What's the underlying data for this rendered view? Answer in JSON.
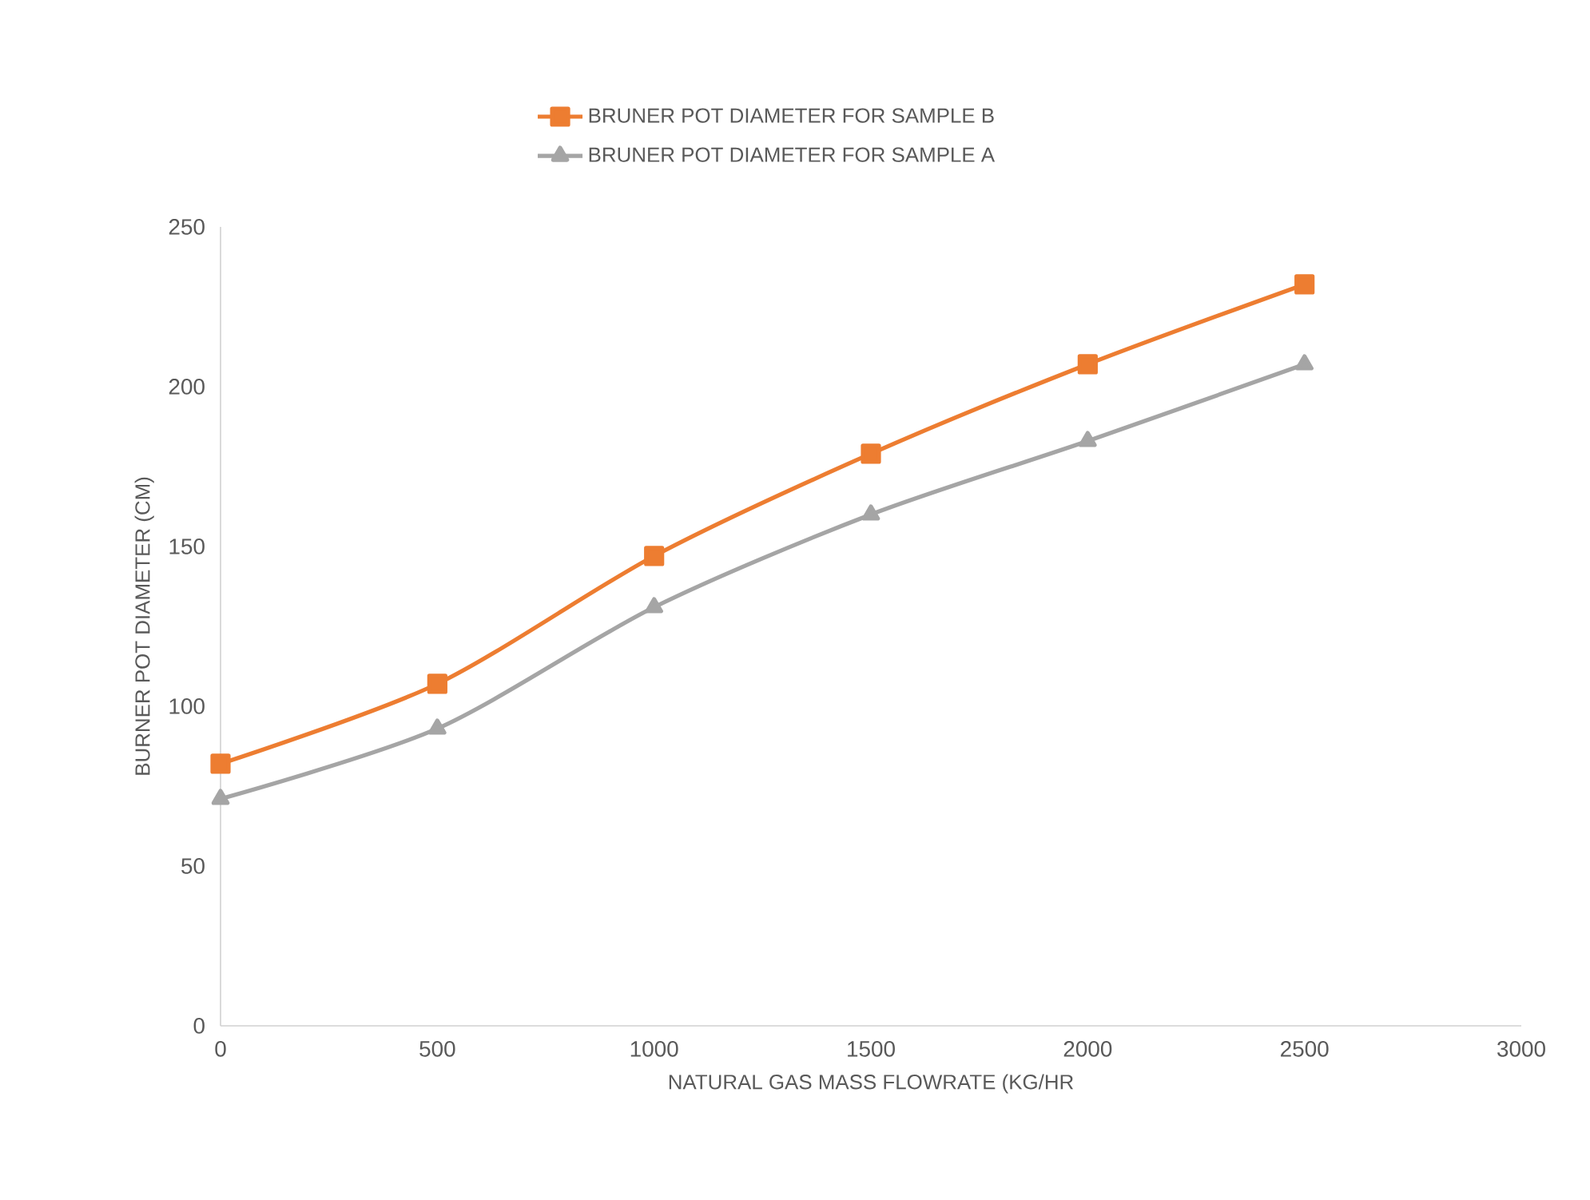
{
  "chart_data": {
    "type": "line",
    "xlabel": "NATURAL GAS MASS FLOWRATE (KG/HR",
    "ylabel": "BURNER POT DIAMETER (CM)",
    "x": [
      0,
      500,
      1000,
      1500,
      2000,
      2500
    ],
    "xlim": [
      0,
      3000
    ],
    "xticks": [
      0,
      500,
      1000,
      1500,
      2000,
      2500,
      3000
    ],
    "ylim": [
      0,
      250
    ],
    "yticks": [
      0,
      50,
      100,
      150,
      200,
      250
    ],
    "legend": "top",
    "line_style": "solid",
    "series": [
      {
        "name": "BRUNER POT DIAMETER FOR SAMPLE B",
        "color": "#ed7d31",
        "marker": "square",
        "values": [
          82,
          107,
          147,
          179,
          207,
          232
        ]
      },
      {
        "name": "BRUNER POT DIAMETER FOR SAMPLE A",
        "color": "#a5a5a5",
        "marker": "triangle",
        "values": [
          71,
          93,
          131,
          160,
          183,
          207
        ]
      }
    ]
  }
}
